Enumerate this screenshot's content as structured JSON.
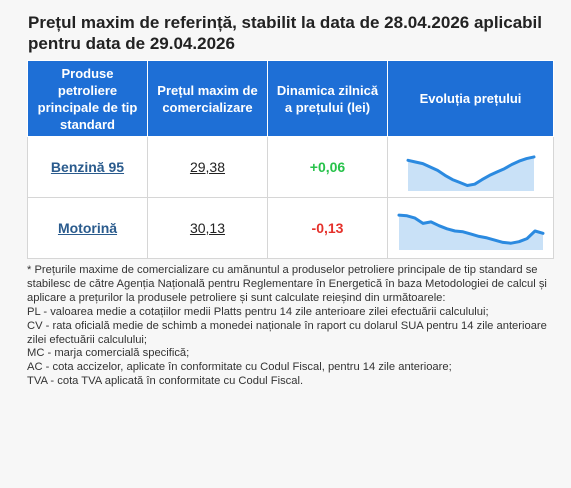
{
  "title": "Prețul maxim de referință, stabilit la data de 28.04.2026 aplicabil pentru data de 29.04.2026",
  "table": {
    "headers": [
      "Produse petroliere principale de tip standard",
      "Prețul maxim de comercializare",
      "Dinamica zilnică a prețului (lei)",
      "Evoluția prețului"
    ],
    "rows": [
      {
        "product": "Benzină 95",
        "price": "29,38",
        "change": "+0,06",
        "change_color": "#27c24a",
        "trend": [
          0.66,
          0.62,
          0.58,
          0.5,
          0.42,
          0.3,
          0.2,
          0.13,
          0.06,
          0.09,
          0.2,
          0.3,
          0.38,
          0.46,
          0.56,
          0.64,
          0.7,
          0.74
        ]
      },
      {
        "product": "Motorină",
        "price": "30,13",
        "change": "-0,13",
        "change_color": "#e5312b",
        "trend": [
          0.84,
          0.82,
          0.76,
          0.62,
          0.66,
          0.56,
          0.48,
          0.42,
          0.4,
          0.34,
          0.28,
          0.24,
          0.18,
          0.12,
          0.1,
          0.14,
          0.22,
          0.42,
          0.36
        ]
      }
    ],
    "sparkline_color": "#2b8ae0",
    "sparkline_fill": "#c9e1f7"
  },
  "notes": [
    "* Prețurile maxime de comercializare cu amănuntul a produselor petroliere principale de tip standard se stabilesc de către Agenția Națională pentru Reglementare în Energetică în baza Metodologiei de calcul și aplicare a prețurilor la produsele petroliere și sunt calculate reieșind din următoarele:",
    "PL - valoarea medie a cotațiilor medii Platts pentru 14 zile anterioare zilei efectuării calculului;",
    "CV - rata oficială medie de schimb a monedei naționale în raport cu dolarul SUA pentru 14 zile anterioare zilei efectuării calculului;",
    "MC - marja comercială specifică;",
    "AC - cota accizelor, aplicate în conformitate cu Codul Fiscal, pentru 14 zile anterioare;",
    "TVA - cota TVA aplicată în conformitate cu Codul Fiscal."
  ]
}
